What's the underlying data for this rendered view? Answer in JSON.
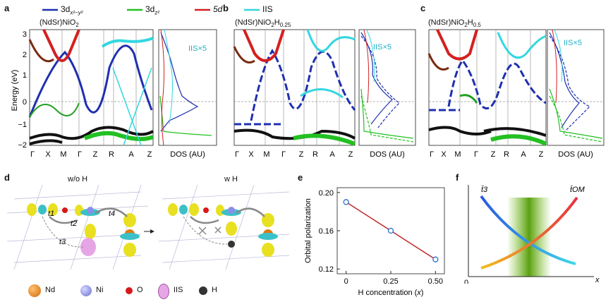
{
  "legend": {
    "items": [
      {
        "label": "3d",
        "sub": "x²−y²",
        "color": "#1f2fb0"
      },
      {
        "label": "3d",
        "sub": "z²",
        "color": "#22c022"
      },
      {
        "label": "5d",
        "sub": "",
        "color": "#d42020"
      },
      {
        "label": "IIS",
        "sub": "",
        "color": "#33d6e0"
      }
    ]
  },
  "panels": {
    "a": {
      "letter": "a",
      "title": "(NdSr)NiO",
      "title_sub": "2",
      "iis": "IIS×5"
    },
    "b": {
      "letter": "b",
      "title": "(NdSr)NiO",
      "title_sub": "2",
      "title_h": "H",
      "title_hsub": "0.25",
      "iis": "IIS×5"
    },
    "c": {
      "letter": "c",
      "title": "(NdSr)NiO",
      "title_sub": "2",
      "title_h": "H",
      "title_hsub": "0.5",
      "iis": "IIS×5"
    },
    "d": {
      "letter": "d",
      "left_title": "w/o H",
      "right_title": "w H",
      "hops": [
        "t1",
        "t2",
        "t3",
        "t4"
      ]
    },
    "e": {
      "letter": "e"
    },
    "f": {
      "letter": "f",
      "curve1": "t̄3",
      "curve2": "t̄OM",
      "origin": "0",
      "xaxis": "x"
    }
  },
  "band_axis": {
    "ylabel": "Energy (eV)",
    "yticks": [
      "3",
      "2",
      "1",
      "0",
      "−1",
      "−2"
    ],
    "kpoints": [
      "Γ",
      "X",
      "M",
      "Γ",
      "Z",
      "R",
      "A",
      "Z"
    ],
    "dos_label": "DOS (AU)"
  },
  "atoms": [
    {
      "label": "Nd",
      "color": "#e07a10"
    },
    {
      "label": "Ni",
      "color": "#8a8ee8"
    },
    {
      "label": "O",
      "color": "#d81818"
    },
    {
      "label": "IIS",
      "color": "#e6a6e6"
    },
    {
      "label": "H",
      "color": "#333333"
    }
  ],
  "chart_data": {
    "type": "line",
    "title": "",
    "xlabel": "H concentration (x)",
    "ylabel": "Orbital polarization",
    "x": [
      0,
      0.25,
      0.5
    ],
    "series": [
      {
        "name": "Orbital polarization",
        "values": [
          0.19,
          0.16,
          0.13
        ]
      }
    ],
    "xticks": [
      "0",
      "0.25",
      "0.50"
    ],
    "yticks": [
      "0.20",
      "0.16",
      "0.12"
    ],
    "xlim": [
      -0.05,
      0.55
    ],
    "ylim": [
      0.115,
      0.205
    ],
    "color": "#c0282a"
  }
}
